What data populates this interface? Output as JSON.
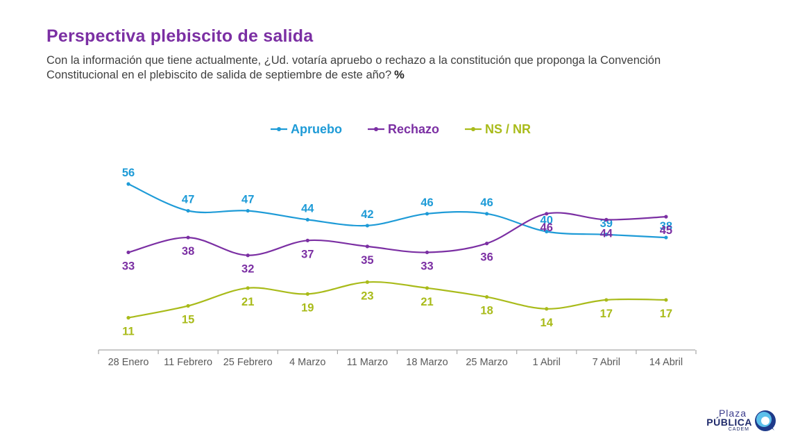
{
  "header": {
    "title": "Perspectiva plebiscito de salida",
    "subtitle": "Con la información que tiene actualmente, ¿Ud. votaría apruebo o rechazo a la constitución que proponga la Convención Constitucional en el plebiscito de salida de septiembre de este año?",
    "unit": "%"
  },
  "chart_data": {
    "type": "line",
    "categories": [
      "28 Enero",
      "11 Febrero",
      "25 Febrero",
      "4 Marzo",
      "11 Marzo",
      "18 Marzo",
      "25 Marzo",
      "1 Abril",
      "7 Abril",
      "14 Abril"
    ],
    "series": [
      {
        "name": "Apruebo",
        "color": "#1e9bd7",
        "values": [
          56,
          47,
          47,
          44,
          42,
          46,
          46,
          40,
          39,
          38
        ],
        "label_position": "above"
      },
      {
        "name": "Rechazo",
        "color": "#7b2fa3",
        "values": [
          33,
          38,
          32,
          37,
          35,
          33,
          36,
          46,
          44,
          45
        ],
        "label_position": "below"
      },
      {
        "name": "NS / NR",
        "color": "#a9bb1a",
        "values": [
          11,
          15,
          21,
          19,
          23,
          21,
          18,
          14,
          17,
          17
        ],
        "label_position": "below"
      }
    ],
    "legend_position": "top-center",
    "grid": false,
    "curve": "smooth"
  },
  "logo": {
    "line1": "Plaza",
    "line2": "PÚBLICA",
    "line3": "CADEM"
  }
}
